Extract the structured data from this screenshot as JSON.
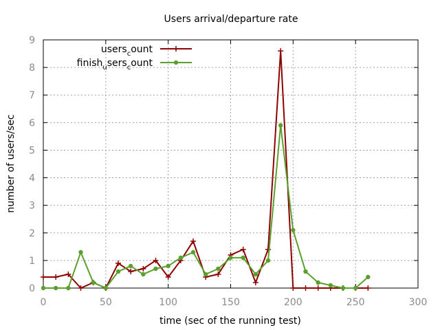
{
  "chart_data": {
    "type": "line",
    "title": "Users arrival/departure rate",
    "xlabel": "time (sec of the running test)",
    "ylabel": "number of users/sec",
    "xlim": [
      0,
      300
    ],
    "ylim": [
      0,
      9
    ],
    "xticks": [
      0,
      50,
      100,
      150,
      200,
      250,
      300
    ],
    "yticks": [
      0,
      1,
      2,
      3,
      4,
      5,
      6,
      7,
      8,
      9
    ],
    "grid": true,
    "legend_position": "top-right",
    "series": [
      {
        "name": "users_count",
        "legend_main": "users",
        "legend_sub": "c",
        "legend_rest": "ount",
        "color": "#8b0000",
        "marker": "plus",
        "x": [
          0,
          10,
          20,
          30,
          40,
          50,
          60,
          70,
          80,
          90,
          100,
          110,
          120,
          130,
          140,
          150,
          160,
          170,
          180,
          190,
          200,
          210,
          220,
          230,
          240,
          250,
          260
        ],
        "y": [
          0.4,
          0.4,
          0.5,
          0,
          0.2,
          0,
          0.9,
          0.6,
          0.7,
          1.0,
          0.4,
          1.0,
          1.7,
          0.4,
          0.5,
          1.2,
          1.4,
          0.2,
          1.4,
          8.6,
          0,
          0,
          0,
          0,
          0,
          0,
          0
        ]
      },
      {
        "name": "finish_users_count",
        "legend_main": "finish",
        "legend_sub": "u",
        "legend_mid": "sers",
        "legend_sub2": "c",
        "legend_rest": "ount",
        "color": "#5aa02c",
        "marker": "circle",
        "x": [
          0,
          10,
          20,
          30,
          40,
          50,
          60,
          70,
          80,
          90,
          100,
          110,
          120,
          130,
          140,
          150,
          160,
          170,
          180,
          190,
          200,
          210,
          220,
          230,
          240,
          250,
          260
        ],
        "y": [
          0,
          0,
          0,
          1.3,
          0.2,
          0,
          0.6,
          0.8,
          0.5,
          0.7,
          0.8,
          1.1,
          1.3,
          0.5,
          0.7,
          1.1,
          1.1,
          0.5,
          1.0,
          5.9,
          2.1,
          0.6,
          0.2,
          0.1,
          0,
          0,
          0.4
        ]
      }
    ]
  }
}
